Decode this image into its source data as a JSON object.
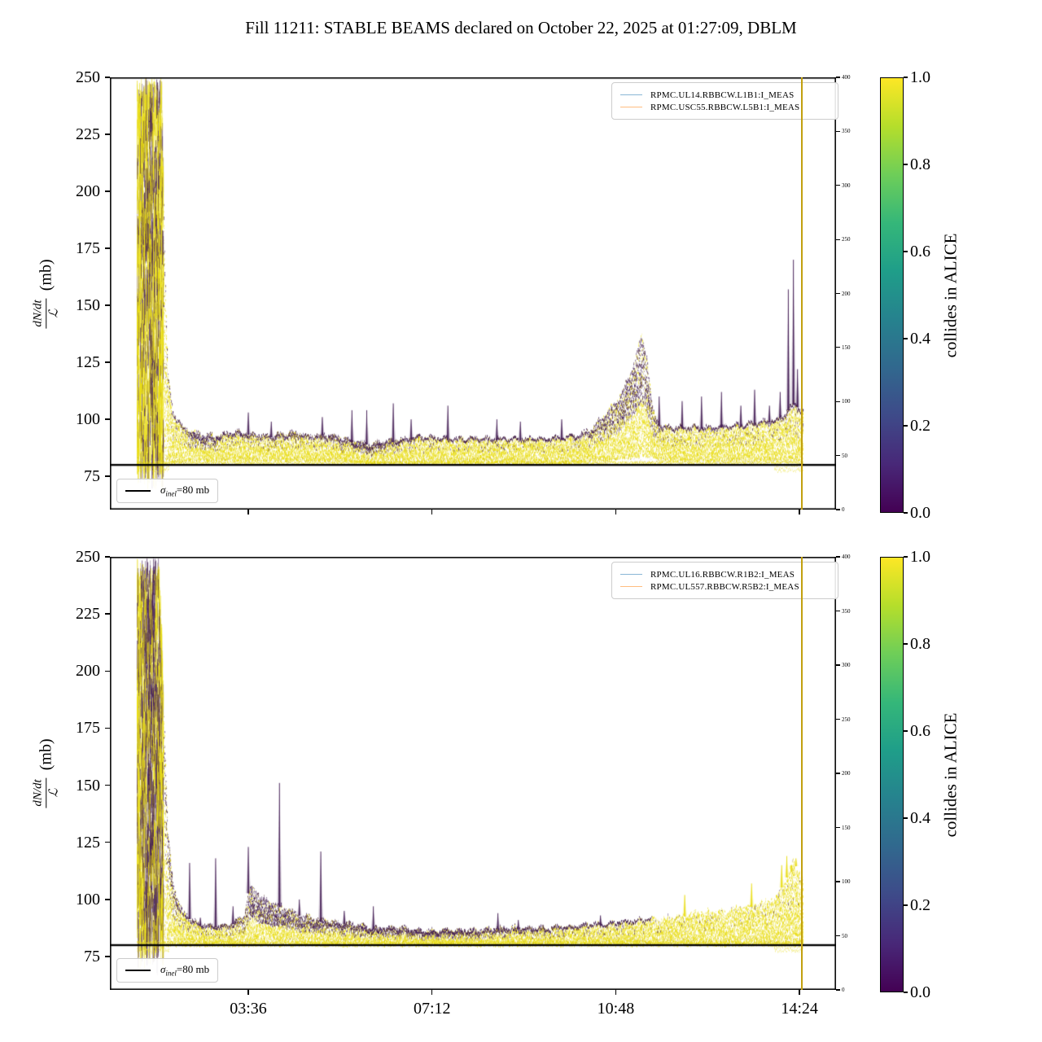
{
  "title": "Fill 11211: STABLE BEAMS declared on October 22, 2025 at 01:27:09, DBLM",
  "colors": {
    "data_yellow": "#e8dc10",
    "data_purple": "#401a52",
    "series_line_1": "#8ab6d6",
    "series_line_2": "#ffbd80",
    "sigma_line": "#000000",
    "end_line": "#c2a00e",
    "frame": "#000000",
    "viridis_stops": [
      "#440154",
      "#482878",
      "#3e4a89",
      "#31688e",
      "#26828e",
      "#1f9e89",
      "#35b779",
      "#6ece58",
      "#b5de2b",
      "#fde725"
    ]
  },
  "chart_data": [
    {
      "type": "scatter",
      "name": "beam1-loss-rate-over-luminosity",
      "legend": [
        "RPMC.UL14.RBBCW.L1B1:I_MEAS",
        "RPMC.USC55.RBBCW.L5B1:I_MEAS"
      ],
      "ylabel": {
        "numerator": "dN/dt",
        "denominator": "ℒ",
        "unit": "(mb)"
      },
      "y_ticks": [
        250,
        225,
        200,
        175,
        150,
        125,
        100,
        75
      ],
      "ylim": [
        60.4,
        250
      ],
      "xlim_hours": [
        0.888,
        15.115
      ],
      "x_ticks": [
        {
          "label": "03:36",
          "hours": 3.6
        },
        {
          "label": "07:12",
          "hours": 7.2
        },
        {
          "label": "10:48",
          "hours": 10.8
        },
        {
          "label": "14:24",
          "hours": 14.4
        }
      ],
      "show_x_tick_labels": false,
      "right_axis_ticks": [
        0,
        50,
        100,
        150,
        200,
        250,
        300,
        350,
        400
      ],
      "right_axis_lim": [
        0,
        400
      ],
      "colorbar": {
        "label": "collides in ALICE",
        "ticks": [
          "1.0",
          "0.8",
          "0.6",
          "0.4",
          "0.2",
          "0.0"
        ],
        "colormap": "viridis"
      },
      "reference_line": {
        "symbol": "σ",
        "subscript": "inel",
        "rest": "=80 mb",
        "value_mb": 80
      },
      "fill_start_hours": 1.43,
      "end_of_fill_line_hours": 14.45,
      "band": [
        [
          1.43,
          79,
          250,
          0.1
        ],
        [
          1.5,
          79,
          250,
          0.3
        ],
        [
          1.6,
          79,
          250,
          0.45
        ],
        [
          1.72,
          79,
          250,
          0.5
        ],
        [
          1.82,
          79,
          250,
          0.35
        ],
        [
          1.9,
          79,
          250,
          0.18
        ],
        [
          1.96,
          80,
          170,
          0.12
        ],
        [
          2.02,
          81,
          120,
          0.1
        ],
        [
          2.12,
          81,
          104,
          0.08
        ],
        [
          2.3,
          82,
          97,
          0.06
        ],
        [
          2.5,
          82,
          95,
          0.28
        ],
        [
          2.7,
          82,
          94,
          0.33
        ],
        [
          2.95,
          82,
          93,
          0.3
        ],
        [
          3.1,
          82,
          94,
          0.1
        ],
        [
          3.4,
          82,
          95,
          0.14
        ],
        [
          3.7,
          82,
          94,
          0.16
        ],
        [
          4.0,
          82,
          93,
          0.14
        ],
        [
          4.4,
          82,
          95,
          0.18
        ],
        [
          4.8,
          82,
          93,
          0.14
        ],
        [
          5.1,
          82,
          94,
          0.18
        ],
        [
          5.5,
          82,
          92,
          0.24
        ],
        [
          5.8,
          81,
          90,
          0.3
        ],
        [
          6.1,
          81,
          90,
          0.3
        ],
        [
          6.4,
          81,
          91,
          0.24
        ],
        [
          6.7,
          81,
          92,
          0.14
        ],
        [
          7.0,
          81,
          93,
          0.1
        ],
        [
          7.5,
          81,
          92,
          0.09
        ],
        [
          8.0,
          81,
          92,
          0.09
        ],
        [
          8.5,
          81,
          92,
          0.08
        ],
        [
          9.0,
          81,
          92,
          0.07
        ],
        [
          9.5,
          81,
          92,
          0.07
        ],
        [
          10.0,
          81,
          93,
          0.08
        ],
        [
          10.3,
          82,
          96,
          0.18
        ],
        [
          10.6,
          82,
          103,
          0.32
        ],
        [
          10.9,
          83,
          112,
          0.42
        ],
        [
          11.1,
          83,
          122,
          0.48
        ],
        [
          11.3,
          84,
          138,
          0.52
        ],
        [
          11.42,
          84,
          126,
          0.45
        ],
        [
          11.52,
          83,
          104,
          0.25
        ],
        [
          11.65,
          82,
          98,
          0.12
        ],
        [
          11.9,
          82,
          97,
          0.09
        ],
        [
          12.3,
          82,
          97,
          0.08
        ],
        [
          12.7,
          82,
          97,
          0.07
        ],
        [
          13.1,
          82,
          98,
          0.07
        ],
        [
          13.5,
          82,
          99,
          0.07
        ],
        [
          13.9,
          82,
          100,
          0.07
        ],
        [
          14.1,
          82,
          103,
          0.08
        ],
        [
          14.3,
          82,
          108,
          0.08
        ],
        [
          14.45,
          82,
          104,
          0.08
        ]
      ],
      "spikes": [
        [
          3.6,
          103
        ],
        [
          4.05,
          99
        ],
        [
          5.05,
          101
        ],
        [
          5.63,
          104
        ],
        [
          5.92,
          104
        ],
        [
          6.44,
          107
        ],
        [
          6.79,
          100
        ],
        [
          7.51,
          106
        ],
        [
          8.47,
          100
        ],
        [
          8.93,
          99
        ],
        [
          9.74,
          100
        ],
        [
          11.65,
          110
        ],
        [
          12.1,
          108
        ],
        [
          12.48,
          110
        ],
        [
          12.87,
          112
        ],
        [
          13.25,
          106
        ],
        [
          13.52,
          113
        ],
        [
          13.81,
          106
        ],
        [
          14.02,
          112
        ],
        [
          14.18,
          157
        ],
        [
          14.28,
          170
        ],
        [
          14.36,
          122
        ]
      ]
    },
    {
      "type": "scatter",
      "name": "beam2-loss-rate-over-luminosity",
      "legend": [
        "RPMC.UL16.RBBCW.R1B2:I_MEAS",
        "RPMC.UL557.RBBCW.R5B2:I_MEAS"
      ],
      "ylabel": {
        "numerator": "dN/dt",
        "denominator": "ℒ",
        "unit": "(mb)"
      },
      "y_ticks": [
        250,
        225,
        200,
        175,
        150,
        125,
        100,
        75
      ],
      "ylim": [
        60.4,
        250
      ],
      "xlim_hours": [
        0.888,
        15.115
      ],
      "x_ticks": [
        {
          "label": "03:36",
          "hours": 3.6
        },
        {
          "label": "07:12",
          "hours": 7.2
        },
        {
          "label": "10:48",
          "hours": 10.8
        },
        {
          "label": "14:24",
          "hours": 14.4
        }
      ],
      "show_x_tick_labels": true,
      "right_axis_ticks": [
        0,
        50,
        100,
        150,
        200,
        250,
        300,
        350,
        400
      ],
      "right_axis_lim": [
        0,
        400
      ],
      "colorbar": {
        "label": "collides in ALICE",
        "ticks": [
          "1.0",
          "0.8",
          "0.6",
          "0.4",
          "0.2",
          "0.0"
        ],
        "colormap": "viridis"
      },
      "reference_line": {
        "symbol": "σ",
        "subscript": "inel",
        "rest": "=80 mb",
        "value_mb": 80
      },
      "fill_start_hours": 1.43,
      "end_of_fill_line_hours": 14.45,
      "band": [
        [
          1.43,
          79,
          250,
          0.25
        ],
        [
          1.55,
          79,
          250,
          0.5
        ],
        [
          1.65,
          79,
          250,
          0.72
        ],
        [
          1.76,
          79,
          250,
          0.68
        ],
        [
          1.86,
          79,
          250,
          0.4
        ],
        [
          1.94,
          79,
          185,
          0.3
        ],
        [
          2.02,
          80,
          130,
          0.28
        ],
        [
          2.12,
          80,
          108,
          0.3
        ],
        [
          2.3,
          80,
          95,
          0.15
        ],
        [
          2.6,
          80,
          90,
          0.12
        ],
        [
          2.9,
          80,
          89,
          0.12
        ],
        [
          3.2,
          80,
          89,
          0.15
        ],
        [
          3.5,
          80,
          93,
          0.22
        ],
        [
          3.62,
          80,
          106,
          0.5
        ],
        [
          3.8,
          80,
          103,
          0.55
        ],
        [
          4.0,
          80,
          100,
          0.55
        ],
        [
          4.2,
          80,
          98,
          0.5
        ],
        [
          4.4,
          80,
          96,
          0.45
        ],
        [
          4.6,
          80,
          94,
          0.4
        ],
        [
          4.9,
          80,
          92,
          0.35
        ],
        [
          5.2,
          80,
          91,
          0.3
        ],
        [
          5.6,
          80,
          90,
          0.3
        ],
        [
          6.0,
          80,
          88,
          0.3
        ],
        [
          6.5,
          80,
          88,
          0.3
        ],
        [
          7.0,
          80,
          87,
          0.3
        ],
        [
          7.5,
          80,
          87,
          0.3
        ],
        [
          8.0,
          80,
          87,
          0.28
        ],
        [
          8.5,
          80,
          88,
          0.25
        ],
        [
          9.0,
          80,
          88,
          0.2
        ],
        [
          9.5,
          80,
          88,
          0.16
        ],
        [
          10.0,
          80,
          89,
          0.12
        ],
        [
          10.6,
          80,
          90,
          0.08
        ],
        [
          11.0,
          80,
          91,
          0.06
        ],
        [
          11.5,
          80,
          92,
          0.05
        ],
        [
          12.0,
          80,
          93,
          0.05
        ],
        [
          12.5,
          80,
          95,
          0.05
        ],
        [
          13.0,
          80,
          96,
          0.04
        ],
        [
          13.5,
          80,
          98,
          0.04
        ],
        [
          13.9,
          80,
          101,
          0.04
        ],
        [
          14.1,
          80,
          108,
          0.04
        ],
        [
          14.28,
          80,
          118,
          0.04
        ],
        [
          14.45,
          80,
          110,
          0.04
        ]
      ],
      "spikes": [
        [
          2.45,
          116
        ],
        [
          2.66,
          92
        ],
        [
          2.96,
          118
        ],
        [
          3.3,
          97
        ],
        [
          3.6,
          123
        ],
        [
          4.21,
          151
        ],
        [
          4.6,
          100
        ],
        [
          5.02,
          121
        ],
        [
          5.48,
          95
        ],
        [
          6.05,
          97
        ],
        [
          8.49,
          94
        ],
        [
          8.89,
          91
        ],
        [
          9.8,
          88
        ],
        [
          10.5,
          93
        ],
        [
          12.15,
          102,
          "y"
        ],
        [
          13.46,
          107,
          "y"
        ],
        [
          14.05,
          115,
          "y"
        ],
        [
          14.15,
          119,
          "y"
        ],
        [
          14.24,
          112,
          "y"
        ],
        [
          14.33,
          118,
          "y"
        ]
      ]
    }
  ]
}
